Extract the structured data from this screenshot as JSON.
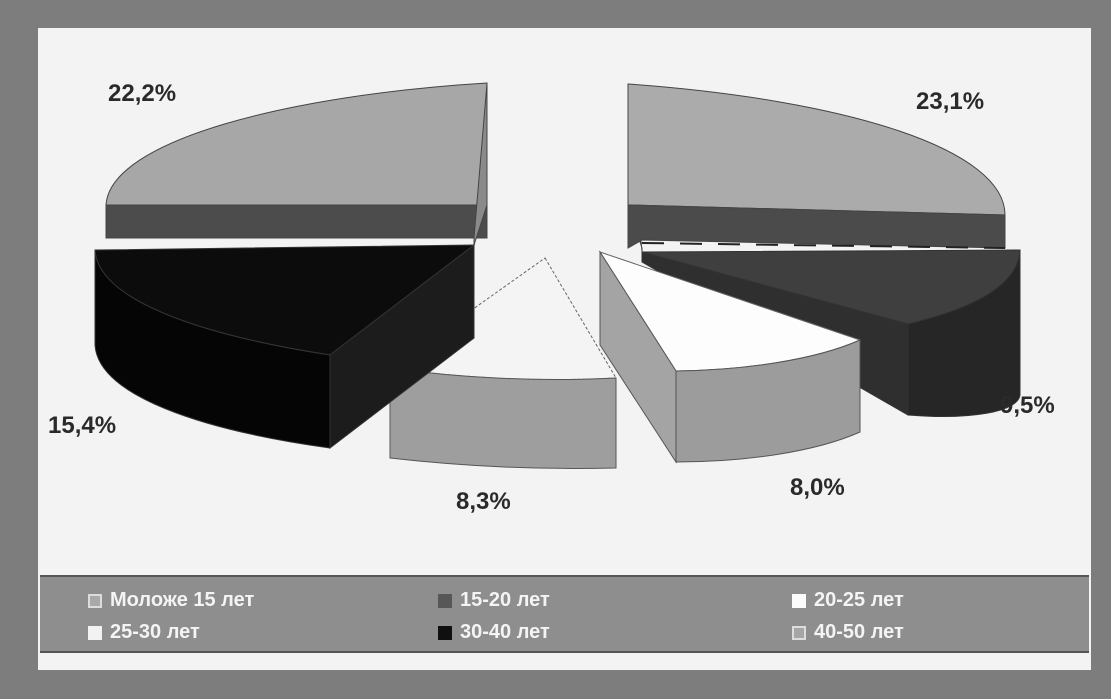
{
  "chart_data": {
    "type": "pie",
    "three_d": true,
    "exploded": true,
    "slices": [
      {
        "label": "Моложе 15 лет",
        "value": 23.1,
        "value_text": "23,1%",
        "color": "#a9a9a9"
      },
      {
        "label": "15-20 лет",
        "value": 9.5,
        "value_text": "9,5%",
        "color": "#575757"
      },
      {
        "label": "20-25 лет",
        "value": 8.0,
        "value_text": "8,0%",
        "color": "#fbfbfb"
      },
      {
        "label": "25-30 лет",
        "value": 8.3,
        "value_text": "8,3%",
        "color": "#f2f2f2"
      },
      {
        "label": "30-40 лет",
        "value": 15.4,
        "value_text": "15,4%",
        "color": "#101010"
      },
      {
        "label": "40-50 лет",
        "value": 22.2,
        "value_text": "22,2%",
        "color": "#a6a6a6"
      }
    ],
    "legend": {
      "position": "bottom"
    }
  }
}
